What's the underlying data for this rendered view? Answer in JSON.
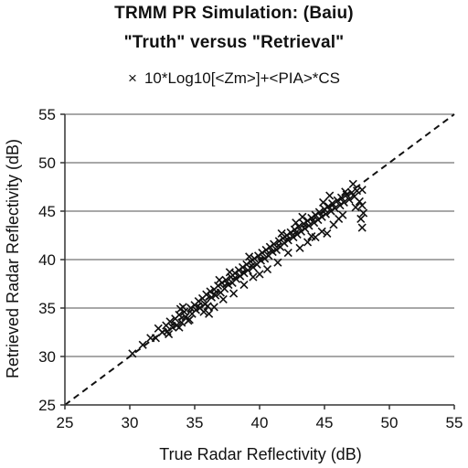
{
  "chart_data": {
    "type": "scatter",
    "title_line1": "TRMM PR Simulation: (Baiu)",
    "title_line2": "\"Truth\" versus \"Retrieval\"",
    "legend": "10*Log10[<Zm>]+<PIA>*CS",
    "legend_marker": "×",
    "xlabel": "True Radar Reflectivity (dB)",
    "ylabel": "Retrieved Radar Reflectivity (dB)",
    "xlim": [
      25,
      55
    ],
    "ylim": [
      25,
      55
    ],
    "xticks": [
      25,
      30,
      35,
      40,
      45,
      50,
      55
    ],
    "yticks": [
      25,
      30,
      35,
      40,
      45,
      50,
      55
    ],
    "grid": "horizontal",
    "reference_line": "1:1 dashed",
    "marker_color": "#111111",
    "series": [
      {
        "values": [
          [
            30.2,
            30.3
          ],
          [
            31.0,
            31.2
          ],
          [
            31.6,
            31.9
          ],
          [
            32.0,
            31.9
          ],
          [
            32.2,
            32.9
          ],
          [
            32.5,
            32.5
          ],
          [
            32.8,
            33.2
          ],
          [
            33.0,
            32.3
          ],
          [
            33.1,
            33.6
          ],
          [
            33.3,
            33.0
          ],
          [
            33.5,
            33.9
          ],
          [
            33.6,
            33.2
          ],
          [
            33.8,
            34.3
          ],
          [
            34.0,
            33.5
          ],
          [
            34.2,
            34.6
          ],
          [
            34.3,
            34.1
          ],
          [
            34.5,
            33.7
          ],
          [
            34.7,
            35.0
          ],
          [
            34.8,
            34.4
          ],
          [
            35.0,
            35.3
          ],
          [
            35.1,
            34.8
          ],
          [
            35.3,
            35.7
          ],
          [
            35.4,
            35.0
          ],
          [
            35.6,
            36.0
          ],
          [
            35.8,
            35.4
          ],
          [
            35.9,
            36.4
          ],
          [
            36.0,
            35.2
          ],
          [
            36.2,
            36.7
          ],
          [
            36.3,
            36.1
          ],
          [
            36.5,
            36.9
          ],
          [
            36.6,
            36.3
          ],
          [
            36.8,
            37.3
          ],
          [
            37.0,
            36.6
          ],
          [
            37.1,
            37.6
          ],
          [
            37.3,
            37.0
          ],
          [
            37.4,
            37.9
          ],
          [
            37.6,
            37.4
          ],
          [
            37.8,
            38.2
          ],
          [
            37.9,
            37.6
          ],
          [
            38.1,
            38.6
          ],
          [
            38.2,
            38.0
          ],
          [
            38.4,
            38.9
          ],
          [
            38.5,
            38.3
          ],
          [
            38.7,
            39.2
          ],
          [
            38.8,
            38.6
          ],
          [
            39.0,
            39.5
          ],
          [
            39.1,
            38.9
          ],
          [
            39.3,
            39.8
          ],
          [
            39.5,
            39.2
          ],
          [
            39.6,
            40.1
          ],
          [
            39.8,
            39.5
          ],
          [
            39.9,
            40.4
          ],
          [
            40.1,
            39.9
          ],
          [
            40.2,
            40.7
          ],
          [
            40.4,
            40.1
          ],
          [
            40.5,
            41.0
          ],
          [
            40.7,
            40.4
          ],
          [
            40.8,
            41.3
          ],
          [
            41.0,
            40.8
          ],
          [
            41.1,
            41.6
          ],
          [
            41.3,
            41.0
          ],
          [
            41.5,
            41.9
          ],
          [
            41.6,
            41.3
          ],
          [
            41.8,
            42.2
          ],
          [
            41.9,
            41.7
          ],
          [
            42.1,
            42.5
          ],
          [
            42.2,
            42.0
          ],
          [
            42.4,
            42.8
          ],
          [
            42.6,
            42.3
          ],
          [
            42.7,
            43.1
          ],
          [
            42.9,
            42.6
          ],
          [
            43.0,
            43.4
          ],
          [
            43.2,
            42.9
          ],
          [
            43.4,
            43.7
          ],
          [
            43.5,
            43.2
          ],
          [
            43.7,
            44.0
          ],
          [
            43.8,
            43.5
          ],
          [
            44.0,
            44.3
          ],
          [
            44.2,
            43.8
          ],
          [
            44.3,
            44.6
          ],
          [
            44.5,
            44.1
          ],
          [
            44.6,
            44.9
          ],
          [
            44.8,
            44.4
          ],
          [
            45.0,
            45.2
          ],
          [
            45.1,
            44.7
          ],
          [
            45.3,
            45.5
          ],
          [
            45.5,
            45.0
          ],
          [
            45.6,
            45.8
          ],
          [
            45.8,
            45.3
          ],
          [
            46.0,
            46.1
          ],
          [
            46.2,
            45.6
          ],
          [
            46.3,
            46.4
          ],
          [
            46.5,
            45.9
          ],
          [
            46.7,
            46.7
          ],
          [
            46.9,
            46.2
          ],
          [
            47.1,
            46.9
          ],
          [
            47.3,
            46.5
          ],
          [
            47.5,
            47.1
          ],
          [
            47.7,
            46.0
          ],
          [
            47.9,
            47.2
          ],
          [
            47.9,
            45.6
          ],
          [
            48.0,
            44.8
          ],
          [
            47.8,
            44.2
          ],
          [
            47.9,
            43.3
          ],
          [
            47.4,
            45.4
          ],
          [
            46.1,
            44.2
          ],
          [
            45.7,
            43.6
          ],
          [
            45.2,
            42.7
          ],
          [
            44.8,
            42.9
          ],
          [
            44.3,
            42.3
          ],
          [
            43.7,
            41.8
          ],
          [
            43.1,
            41.2
          ],
          [
            42.2,
            40.7
          ],
          [
            41.4,
            39.7
          ],
          [
            40.6,
            39.0
          ],
          [
            39.5,
            38.2
          ],
          [
            38.8,
            37.4
          ],
          [
            38.0,
            36.5
          ],
          [
            37.2,
            35.9
          ],
          [
            36.5,
            35.1
          ],
          [
            35.7,
            34.6
          ],
          [
            34.6,
            33.8
          ],
          [
            33.8,
            33.0
          ],
          [
            32.9,
            32.6
          ],
          [
            36.1,
            34.4
          ],
          [
            40.0,
            38.5
          ],
          [
            44.0,
            42.4
          ],
          [
            46.4,
            44.6
          ],
          [
            34.1,
            35.1
          ],
          [
            39.2,
            40.3
          ],
          [
            42.8,
            43.8
          ],
          [
            45.4,
            46.6
          ],
          [
            37.7,
            38.7
          ],
          [
            36.9,
            37.9
          ],
          [
            33.9,
            34.9
          ],
          [
            41.7,
            42.7
          ],
          [
            43.3,
            44.4
          ],
          [
            44.9,
            45.9
          ],
          [
            46.6,
            47.0
          ],
          [
            47.2,
            47.8
          ]
        ]
      }
    ]
  }
}
